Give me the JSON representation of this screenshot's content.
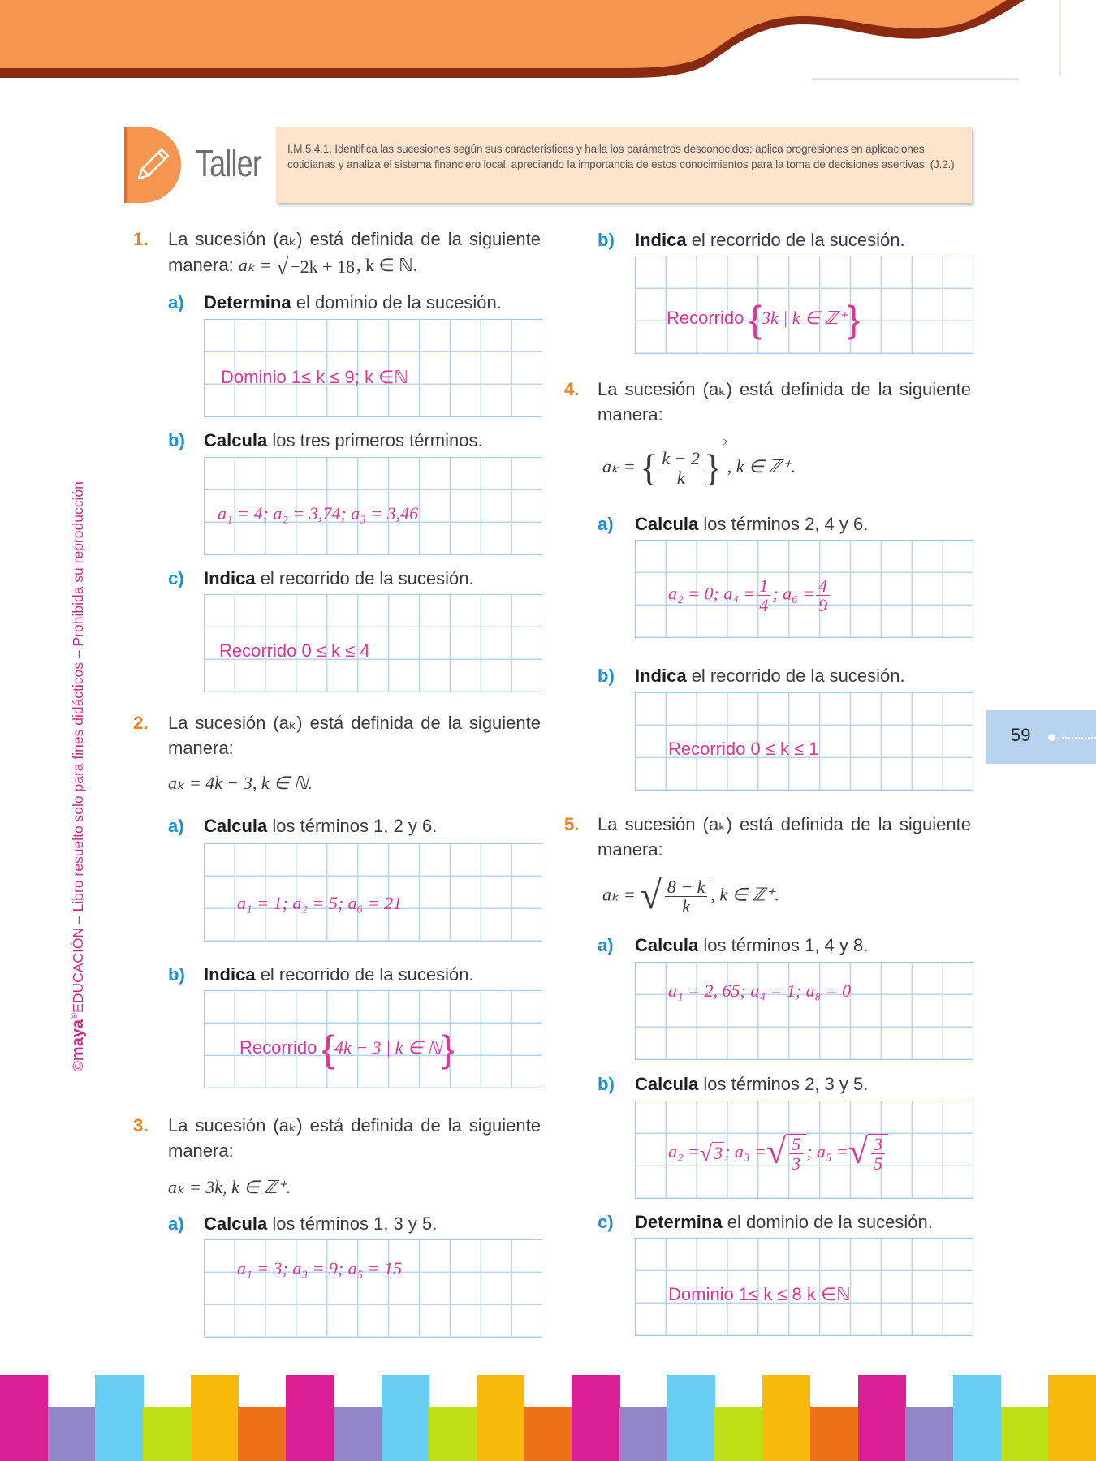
{
  "colors": {
    "header_orange": "#f4964f",
    "header_dark": "#8b2a10",
    "answer": "#e0339a",
    "label_blue": "#1a8fd1",
    "number_orange": "#f07d22",
    "grid": "#b9d5ee",
    "page_tab": "#b6d4ef"
  },
  "sidebar": {
    "copyright": "©",
    "brand": "maya",
    "registered": "®",
    "text": "EDUCACIÓN – Libro resuelto solo para fines didácticos – Prohibida su reproducción"
  },
  "banner": {
    "icon": "pencil-icon",
    "title": "Taller",
    "description": "I.M.5.4.1. Identifica las sucesiones según sus características y halla los parámetros desconocidos; aplica progresiones en aplicaciones cotidianas y analiza el sistema financiero local, apreciando la importancia de estos conocimientos para la toma de decisiones asertivas. (J.2.)"
  },
  "page_number": "59",
  "intro_line1": "La sucesión (aₖ) está definida de la siguiente",
  "intro_line2": "manera:",
  "q1": {
    "num": "1.",
    "lhs": "aₖ =",
    "radicand": "−2k + 18",
    "rest": ", k ∈ ℕ.",
    "a": {
      "label": "a)",
      "verb": "Determina",
      "rest": " el dominio de la sucesión.",
      "answer": "Dominio 1≤ k ≤ 9; k ∈ℕ"
    },
    "b": {
      "label": "b)",
      "verb": "Calcula",
      "rest": " los tres primeros términos.",
      "answer": "a₁ = 4;  a₂ = 3,74;  a₃ = 3,46"
    },
    "c": {
      "label": "c)",
      "verb": "Indica",
      "rest": " el recorrido de la sucesión.",
      "answer": "Recorrido 0 ≤ k ≤ 4"
    }
  },
  "q2": {
    "num": "2.",
    "formula": "aₖ = 4k − 3, k ∈ ℕ.",
    "a": {
      "label": "a)",
      "verb": "Calcula",
      "rest": " los términos 1, 2 y 6.",
      "answer": "a₁ = 1;  a₂ = 5;  a₆ = 21"
    },
    "b": {
      "label": "b)",
      "verb": "Indica",
      "rest": " el recorrido de la sucesión.",
      "answer_prefix": "Recorrido",
      "answer_set": "4k − 3 | k ∈ ℕ"
    }
  },
  "q3": {
    "num": "3.",
    "formula": "aₖ = 3k, k ∈ ℤ⁺.",
    "a": {
      "label": "a)",
      "verb": "Calcula",
      "rest": " los términos 1, 3 y 5.",
      "answer": "a₁ = 3;  a₃ = 9;  a₅ = 15"
    },
    "b": {
      "label": "b)",
      "verb": "Indica",
      "rest": " el recorrido de la sucesión.",
      "answer_prefix": "Recorrido",
      "answer_set": "3k | k ∈ ℤ⁺"
    }
  },
  "q4": {
    "num": "4.",
    "lhs": "aₖ =",
    "numerator": "k − 2",
    "denominator": "k",
    "exponent": "2",
    "rest": ", k ∈ ℤ⁺.",
    "a": {
      "label": "a)",
      "verb": "Calcula",
      "rest": " los términos 2, 4 y 6.",
      "answer_p1": "a₂ = 0; a₄ =",
      "f1_num": "1",
      "f1_den": "4",
      "answer_p2": "; a₆ =",
      "f2_num": "4",
      "f2_den": "9"
    },
    "b": {
      "label": "b)",
      "verb": "Indica",
      "rest": " el recorrido de la sucesión.",
      "answer": "Recorrido 0 ≤ k ≤ 1"
    }
  },
  "q5": {
    "num": "5.",
    "lhs": "aₖ =",
    "numerator": "8 − k",
    "denominator": "k",
    "rest": ", k ∈ ℤ⁺.",
    "a": {
      "label": "a)",
      "verb": "Calcula",
      "rest": " los términos 1, 4 y 8.",
      "answer": "a₁ = 2, 65;  a₄ = 1;  a₈ = 0"
    },
    "b": {
      "label": "b)",
      "verb": "Calcula",
      "rest": " los términos 2, 3 y 5.",
      "answer_p1": "a₂ =",
      "r1": "3",
      "answer_p2": "; a₃ =",
      "f1_num": "5",
      "f1_den": "3",
      "answer_p3": "; a₅ =",
      "f2_num": "3",
      "f2_den": "5"
    },
    "c": {
      "label": "c)",
      "verb": "Determina",
      "rest": " el dominio de la sucesión.",
      "answer": "Dominio 1≤ k ≤ 8  k ∈ℕ"
    }
  }
}
